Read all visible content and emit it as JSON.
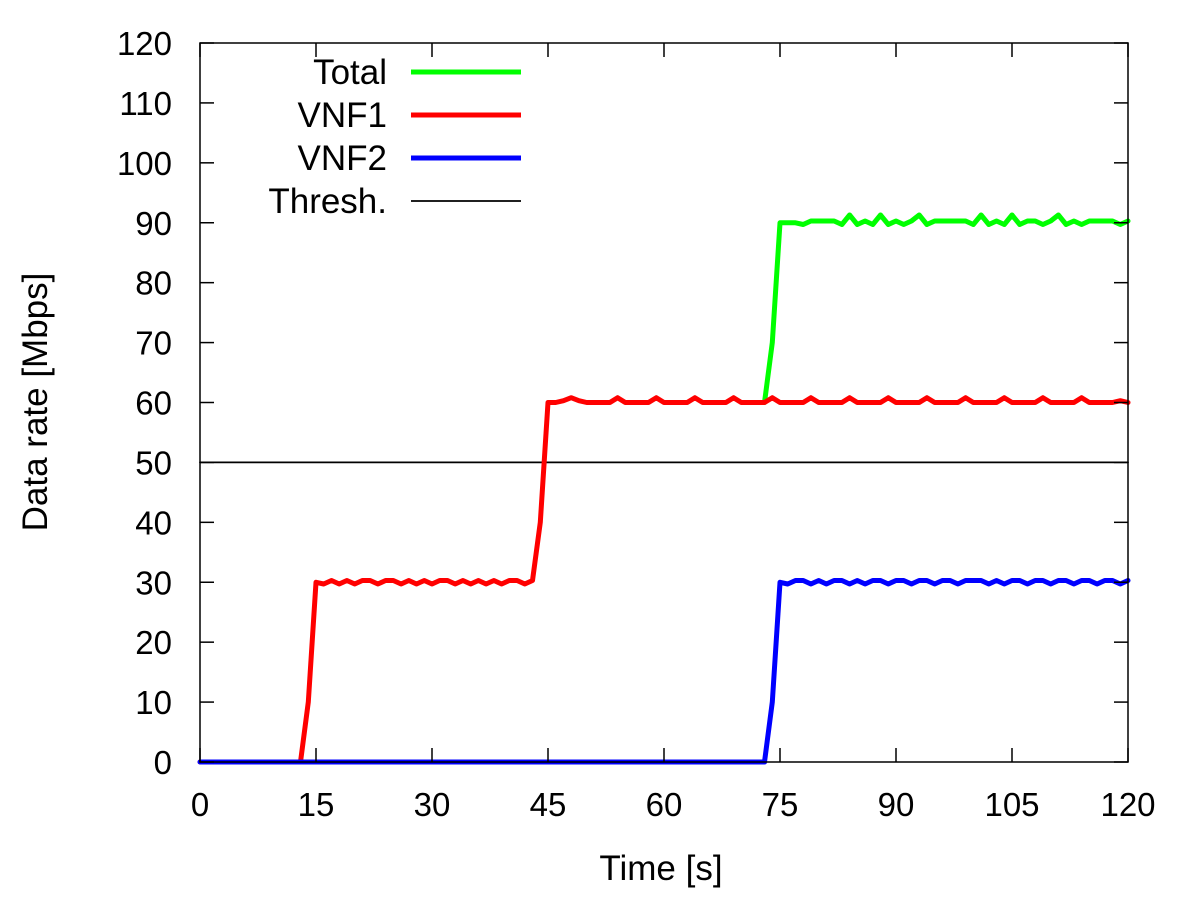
{
  "chart_data": {
    "type": "line",
    "title": "",
    "xlabel": "Time [s]",
    "ylabel": "Data rate [Mbps]",
    "xlim": [
      0,
      120
    ],
    "ylim": [
      0,
      120
    ],
    "xticks": [
      0,
      15,
      30,
      45,
      60,
      75,
      90,
      105,
      120
    ],
    "yticks": [
      0,
      10,
      20,
      30,
      40,
      50,
      60,
      70,
      80,
      90,
      100,
      110,
      120
    ],
    "grid": false,
    "legend_position": "top-left",
    "series": [
      {
        "name": "Total",
        "color": "#00ff00",
        "x": [
          73,
          74,
          75,
          76,
          77,
          78,
          79,
          80,
          81,
          82,
          83,
          84,
          85,
          86,
          87,
          88,
          89,
          90,
          91,
          92,
          93,
          94,
          95,
          96,
          97,
          98,
          99,
          100,
          101,
          102,
          103,
          104,
          105,
          106,
          107,
          108,
          109,
          110,
          111,
          112,
          113,
          114,
          115,
          116,
          117,
          118,
          119,
          120
        ],
        "values": [
          60,
          70,
          90,
          90,
          90,
          89.7,
          90.3,
          90.3,
          90.3,
          90.3,
          89.7,
          91.3,
          89.7,
          90.3,
          89.7,
          91.3,
          89.7,
          90.3,
          89.7,
          90.3,
          91.3,
          89.7,
          90.3,
          90.3,
          90.3,
          90.3,
          90.3,
          89.7,
          91.3,
          89.7,
          90.3,
          89.7,
          91.3,
          89.7,
          90.3,
          90.3,
          89.7,
          90.3,
          91.3,
          89.7,
          90.3,
          89.7,
          90.3,
          90.3,
          90.3,
          90.3,
          89.7,
          90.3
        ]
      },
      {
        "name": "VNF1",
        "color": "#ff0000",
        "x": [
          0,
          13,
          14,
          15,
          16,
          17,
          18,
          19,
          20,
          21,
          22,
          23,
          24,
          25,
          26,
          27,
          28,
          29,
          30,
          31,
          32,
          33,
          34,
          35,
          36,
          37,
          38,
          39,
          40,
          41,
          42,
          43,
          44,
          45,
          46,
          47,
          48,
          49,
          50,
          51,
          52,
          53,
          54,
          55,
          56,
          57,
          58,
          59,
          60,
          61,
          62,
          63,
          64,
          65,
          66,
          67,
          68,
          69,
          70,
          71,
          72,
          73,
          74,
          75,
          76,
          77,
          78,
          79,
          80,
          81,
          82,
          83,
          84,
          85,
          86,
          87,
          88,
          89,
          90,
          91,
          92,
          93,
          94,
          95,
          96,
          97,
          98,
          99,
          100,
          101,
          102,
          103,
          104,
          105,
          106,
          107,
          108,
          109,
          110,
          111,
          112,
          113,
          114,
          115,
          116,
          117,
          118,
          119,
          120
        ],
        "values": [
          0,
          0,
          10,
          30,
          29.7,
          30.3,
          29.7,
          30.3,
          29.7,
          30.3,
          30.3,
          29.7,
          30.3,
          30.3,
          29.7,
          30.3,
          29.7,
          30.3,
          29.7,
          30.3,
          30.3,
          29.7,
          30.3,
          29.7,
          30.3,
          29.7,
          30.3,
          29.7,
          30.3,
          30.3,
          29.7,
          30.3,
          40,
          60,
          60,
          60.3,
          60.8,
          60.3,
          60,
          60,
          60,
          60,
          60.8,
          60,
          60,
          60,
          60,
          60.8,
          60,
          60,
          60,
          60,
          60.8,
          60,
          60,
          60,
          60,
          60.8,
          60,
          60,
          60,
          60,
          60.8,
          60,
          60,
          60,
          60,
          60.8,
          60,
          60,
          60,
          60,
          60.8,
          60,
          60,
          60,
          60,
          60.8,
          60,
          60,
          60,
          60,
          60.8,
          60,
          60,
          60,
          60,
          60.8,
          60,
          60,
          60,
          60,
          60.8,
          60,
          60,
          60,
          60,
          60.8,
          60,
          60,
          60,
          60,
          60.8,
          60,
          60,
          60,
          60,
          60.3,
          60
        ]
      },
      {
        "name": "VNF2",
        "color": "#0000ff",
        "x": [
          0,
          73,
          74,
          75,
          76,
          77,
          78,
          79,
          80,
          81,
          82,
          83,
          84,
          85,
          86,
          87,
          88,
          89,
          90,
          91,
          92,
          93,
          94,
          95,
          96,
          97,
          98,
          99,
          100,
          101,
          102,
          103,
          104,
          105,
          106,
          107,
          108,
          109,
          110,
          111,
          112,
          113,
          114,
          115,
          116,
          117,
          118,
          119,
          120
        ],
        "values": [
          0,
          0,
          10,
          30,
          29.7,
          30.3,
          30.3,
          29.7,
          30.3,
          29.7,
          30.3,
          30.3,
          29.7,
          30.3,
          29.7,
          30.3,
          30.3,
          29.7,
          30.3,
          30.3,
          29.7,
          30.3,
          30.3,
          29.7,
          30.3,
          30.3,
          29.7,
          30.3,
          30.3,
          30.3,
          29.7,
          30.3,
          29.7,
          30.3,
          30.3,
          29.7,
          30.3,
          30.3,
          29.7,
          30.3,
          30.3,
          29.7,
          30.3,
          30.3,
          29.7,
          30.3,
          30.3,
          29.7,
          30.3
        ]
      },
      {
        "name": "Thresh.",
        "color": "#000000",
        "x": [
          0,
          120
        ],
        "values": [
          50,
          50
        ]
      }
    ]
  }
}
